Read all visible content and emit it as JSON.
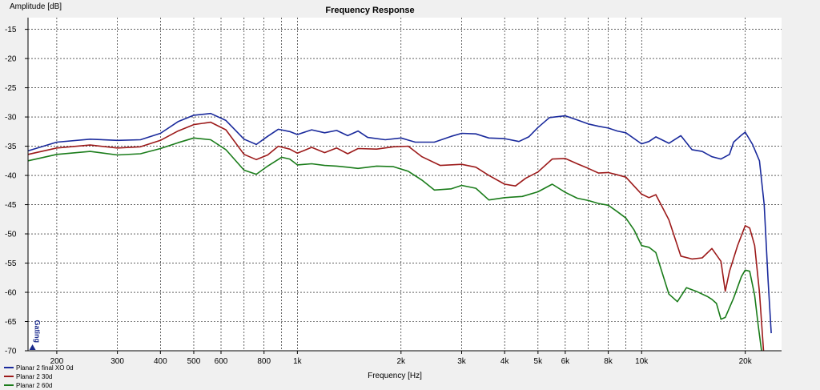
{
  "chart_data": {
    "type": "line",
    "title": "Frequency Response",
    "xlabel": "Frequency [Hz]",
    "ylabel": "Amplitude [dB]",
    "xscale": "log",
    "xlim": [
      165,
      25500
    ],
    "ylim": [
      -70,
      -13
    ],
    "yticks": [
      -15,
      -20,
      -25,
      -30,
      -35,
      -40,
      -45,
      -50,
      -55,
      -60,
      -65,
      -70
    ],
    "xticks": [
      {
        "value": 200,
        "label": "200"
      },
      {
        "value": 300,
        "label": "300"
      },
      {
        "value": 400,
        "label": "400"
      },
      {
        "value": 500,
        "label": "500"
      },
      {
        "value": 600,
        "label": "600"
      },
      {
        "value": 800,
        "label": "800"
      },
      {
        "value": 1000,
        "label": "1k"
      },
      {
        "value": 2000,
        "label": "2k"
      },
      {
        "value": 3000,
        "label": "3k"
      },
      {
        "value": 4000,
        "label": "4k"
      },
      {
        "value": 5000,
        "label": "5k"
      },
      {
        "value": 6000,
        "label": "6k"
      },
      {
        "value": 8000,
        "label": "8k"
      },
      {
        "value": 10000,
        "label": "10k"
      },
      {
        "value": 20000,
        "label": "20k"
      }
    ],
    "grid": true,
    "legend_position": "bottom-left",
    "gating_marker": {
      "label": "Gating",
      "x": 170,
      "color": "#1a2a8c"
    },
    "series": [
      {
        "name": "Planar 2 final XO 0d",
        "color": "#1a2a9c",
        "points": [
          [
            165,
            -35.8
          ],
          [
            200,
            -34.3
          ],
          [
            250,
            -33.8
          ],
          [
            300,
            -34.0
          ],
          [
            350,
            -33.9
          ],
          [
            400,
            -32.8
          ],
          [
            450,
            -30.8
          ],
          [
            500,
            -29.7
          ],
          [
            560,
            -29.4
          ],
          [
            620,
            -30.6
          ],
          [
            700,
            -33.8
          ],
          [
            760,
            -34.7
          ],
          [
            820,
            -33.3
          ],
          [
            880,
            -32.1
          ],
          [
            950,
            -32.5
          ],
          [
            1000,
            -33.0
          ],
          [
            1100,
            -32.2
          ],
          [
            1200,
            -32.7
          ],
          [
            1300,
            -32.3
          ],
          [
            1400,
            -33.2
          ],
          [
            1500,
            -32.4
          ],
          [
            1600,
            -33.5
          ],
          [
            1800,
            -33.9
          ],
          [
            2000,
            -33.6
          ],
          [
            2200,
            -34.3
          ],
          [
            2500,
            -34.3
          ],
          [
            2800,
            -33.3
          ],
          [
            3000,
            -32.8
          ],
          [
            3300,
            -32.9
          ],
          [
            3600,
            -33.6
          ],
          [
            4000,
            -33.7
          ],
          [
            4400,
            -34.2
          ],
          [
            4700,
            -33.4
          ],
          [
            5000,
            -31.8
          ],
          [
            5400,
            -30.1
          ],
          [
            6000,
            -29.8
          ],
          [
            6500,
            -30.5
          ],
          [
            7000,
            -31.2
          ],
          [
            7500,
            -31.6
          ],
          [
            8000,
            -31.9
          ],
          [
            8500,
            -32.4
          ],
          [
            9000,
            -32.7
          ],
          [
            10000,
            -34.6
          ],
          [
            10500,
            -34.2
          ],
          [
            11000,
            -33.4
          ],
          [
            12000,
            -34.5
          ],
          [
            13000,
            -33.2
          ],
          [
            14000,
            -35.6
          ],
          [
            15000,
            -35.9
          ],
          [
            16000,
            -36.8
          ],
          [
            17000,
            -37.2
          ],
          [
            18000,
            -36.4
          ],
          [
            18500,
            -34.3
          ],
          [
            19500,
            -33.1
          ],
          [
            20000,
            -32.6
          ],
          [
            21000,
            -34.7
          ],
          [
            22000,
            -37.5
          ],
          [
            22700,
            -45.0
          ],
          [
            23300,
            -58.0
          ],
          [
            23800,
            -67.0
          ]
        ]
      },
      {
        "name": "Planar 2 30d",
        "color": "#9c1a1a",
        "points": [
          [
            165,
            -36.4
          ],
          [
            200,
            -35.3
          ],
          [
            250,
            -34.8
          ],
          [
            300,
            -35.3
          ],
          [
            350,
            -35.1
          ],
          [
            400,
            -34.0
          ],
          [
            450,
            -32.4
          ],
          [
            500,
            -31.3
          ],
          [
            560,
            -30.9
          ],
          [
            620,
            -32.2
          ],
          [
            700,
            -36.4
          ],
          [
            760,
            -37.3
          ],
          [
            820,
            -36.5
          ],
          [
            880,
            -35.0
          ],
          [
            950,
            -35.5
          ],
          [
            1000,
            -36.2
          ],
          [
            1100,
            -35.2
          ],
          [
            1200,
            -36.1
          ],
          [
            1300,
            -35.3
          ],
          [
            1400,
            -36.3
          ],
          [
            1500,
            -35.4
          ],
          [
            1700,
            -35.5
          ],
          [
            1900,
            -35.1
          ],
          [
            2100,
            -35.0
          ],
          [
            2300,
            -36.8
          ],
          [
            2600,
            -38.3
          ],
          [
            3000,
            -38.1
          ],
          [
            3300,
            -38.6
          ],
          [
            3600,
            -40.0
          ],
          [
            4000,
            -41.5
          ],
          [
            4300,
            -41.8
          ],
          [
            4600,
            -40.5
          ],
          [
            5000,
            -39.4
          ],
          [
            5500,
            -37.2
          ],
          [
            6000,
            -37.1
          ],
          [
            6500,
            -38.0
          ],
          [
            7000,
            -38.8
          ],
          [
            7500,
            -39.6
          ],
          [
            8000,
            -39.5
          ],
          [
            8500,
            -39.9
          ],
          [
            9000,
            -40.3
          ],
          [
            9500,
            -41.8
          ],
          [
            10000,
            -43.2
          ],
          [
            10500,
            -43.8
          ],
          [
            11000,
            -43.3
          ],
          [
            12000,
            -47.6
          ],
          [
            13000,
            -53.8
          ],
          [
            14000,
            -54.3
          ],
          [
            15000,
            -54.1
          ],
          [
            16000,
            -52.5
          ],
          [
            17000,
            -54.7
          ],
          [
            17500,
            -59.8
          ],
          [
            18000,
            -56.4
          ],
          [
            19000,
            -52.0
          ],
          [
            20000,
            -48.6
          ],
          [
            20600,
            -49.0
          ],
          [
            21300,
            -52.0
          ],
          [
            22000,
            -60.0
          ],
          [
            22600,
            -70.0
          ]
        ]
      },
      {
        "name": "Planar 2 60d",
        "color": "#1a7c1a",
        "points": [
          [
            165,
            -37.5
          ],
          [
            200,
            -36.4
          ],
          [
            250,
            -35.9
          ],
          [
            300,
            -36.5
          ],
          [
            350,
            -36.3
          ],
          [
            400,
            -35.4
          ],
          [
            450,
            -34.4
          ],
          [
            500,
            -33.6
          ],
          [
            560,
            -33.9
          ],
          [
            620,
            -35.6
          ],
          [
            700,
            -39.1
          ],
          [
            760,
            -39.8
          ],
          [
            820,
            -38.4
          ],
          [
            900,
            -36.9
          ],
          [
            950,
            -37.2
          ],
          [
            1000,
            -38.2
          ],
          [
            1100,
            -38.0
          ],
          [
            1200,
            -38.3
          ],
          [
            1300,
            -38.4
          ],
          [
            1400,
            -38.6
          ],
          [
            1500,
            -38.8
          ],
          [
            1700,
            -38.4
          ],
          [
            1900,
            -38.5
          ],
          [
            2100,
            -39.3
          ],
          [
            2300,
            -40.8
          ],
          [
            2500,
            -42.5
          ],
          [
            2800,
            -42.3
          ],
          [
            3000,
            -41.7
          ],
          [
            3300,
            -42.2
          ],
          [
            3600,
            -44.2
          ],
          [
            4000,
            -43.8
          ],
          [
            4500,
            -43.6
          ],
          [
            5000,
            -42.8
          ],
          [
            5500,
            -41.5
          ],
          [
            6000,
            -42.9
          ],
          [
            6500,
            -43.9
          ],
          [
            7000,
            -44.3
          ],
          [
            7500,
            -44.8
          ],
          [
            8000,
            -45.1
          ],
          [
            8500,
            -46.2
          ],
          [
            9000,
            -47.3
          ],
          [
            9500,
            -49.3
          ],
          [
            10000,
            -52.0
          ],
          [
            10500,
            -52.3
          ],
          [
            11000,
            -53.2
          ],
          [
            12000,
            -60.3
          ],
          [
            12700,
            -61.6
          ],
          [
            13500,
            -59.2
          ],
          [
            14500,
            -59.9
          ],
          [
            15500,
            -60.7
          ],
          [
            16000,
            -61.2
          ],
          [
            16500,
            -61.9
          ],
          [
            17000,
            -64.6
          ],
          [
            17500,
            -64.3
          ],
          [
            18500,
            -61.0
          ],
          [
            19500,
            -57.3
          ],
          [
            20000,
            -56.2
          ],
          [
            20600,
            -56.4
          ],
          [
            21300,
            -60.5
          ],
          [
            21800,
            -65.5
          ],
          [
            22300,
            -70.0
          ]
        ]
      }
    ]
  }
}
